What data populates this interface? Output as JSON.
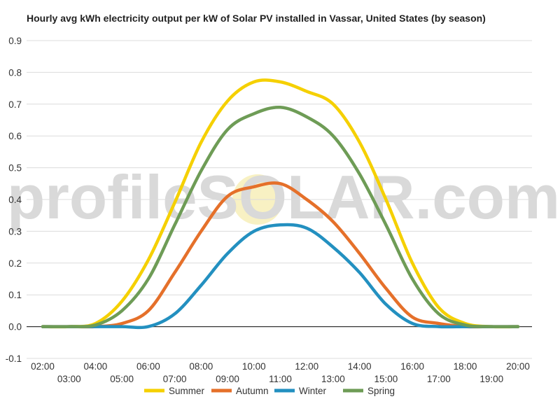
{
  "chart_data": {
    "type": "line",
    "title": "Hourly avg kWh electricity output per kW of Solar PV installed in Vassar, United States (by season)",
    "xlabel": "",
    "ylabel": "",
    "ylim": [
      -0.1,
      0.9
    ],
    "yticks": [
      "0.9",
      "0.8",
      "0.7",
      "0.6",
      "0.5",
      "0.4",
      "0.3",
      "0.2",
      "0.1",
      "0.0",
      "-0.1"
    ],
    "x": [
      "02:00",
      "03:00",
      "04:00",
      "05:00",
      "06:00",
      "07:00",
      "08:00",
      "09:00",
      "10:00",
      "11:00",
      "12:00",
      "13:00",
      "14:00",
      "15:00",
      "16:00",
      "17:00",
      "18:00",
      "19:00",
      "20:00"
    ],
    "grid": true,
    "legend_position": "bottom",
    "series": [
      {
        "name": "Summer",
        "color": "#f5d000",
        "values": [
          0,
          0,
          0.01,
          0.08,
          0.21,
          0.39,
          0.58,
          0.71,
          0.77,
          0.77,
          0.74,
          0.7,
          0.58,
          0.4,
          0.2,
          0.06,
          0.01,
          0,
          0
        ]
      },
      {
        "name": "Autumn",
        "color": "#e5702a",
        "values": [
          0,
          0,
          0,
          0.01,
          0.05,
          0.17,
          0.3,
          0.41,
          0.44,
          0.45,
          0.4,
          0.33,
          0.23,
          0.12,
          0.03,
          0.01,
          0,
          0,
          0
        ]
      },
      {
        "name": "Winter",
        "color": "#2390c0",
        "values": [
          0,
          0,
          0,
          0,
          0,
          0.04,
          0.13,
          0.23,
          0.3,
          0.32,
          0.31,
          0.25,
          0.17,
          0.07,
          0.01,
          0,
          0,
          0,
          0
        ]
      },
      {
        "name": "Spring",
        "color": "#6e9c56",
        "values": [
          0,
          0,
          0.005,
          0.05,
          0.15,
          0.32,
          0.49,
          0.62,
          0.67,
          0.69,
          0.66,
          0.6,
          0.48,
          0.32,
          0.15,
          0.04,
          0.005,
          0,
          0
        ]
      }
    ]
  },
  "watermark": {
    "text": "profileSOLAR.com"
  }
}
